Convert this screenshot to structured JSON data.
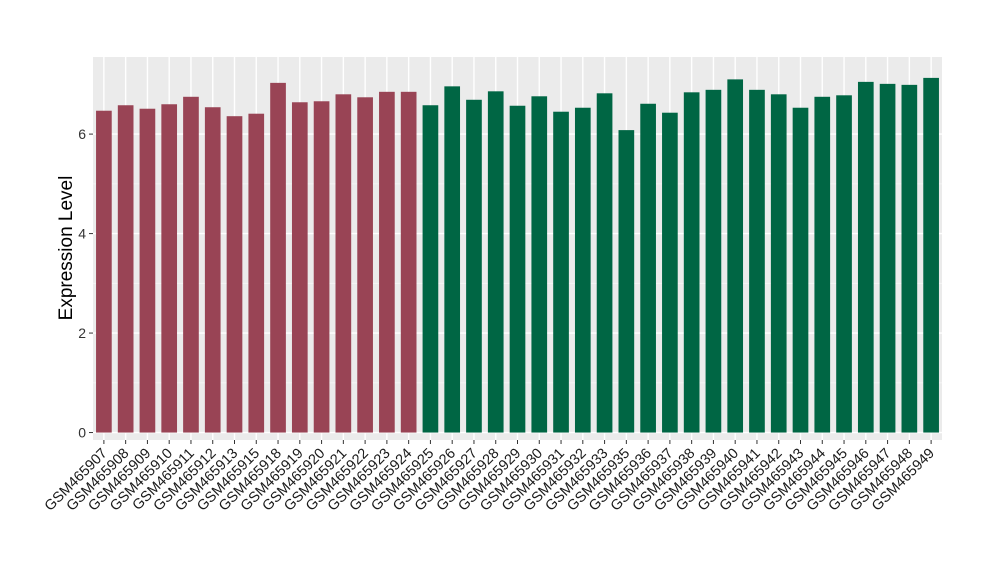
{
  "chart_data": {
    "type": "bar",
    "title": "",
    "xlabel": "",
    "ylabel": "Expression Level",
    "ylim": [
      -0.15,
      7.55
    ],
    "yticks": [
      0,
      2,
      4,
      6
    ],
    "grid": true,
    "background": "#ebebeb",
    "categories": [
      "GSM465907",
      "GSM465908",
      "GSM465909",
      "GSM465910",
      "GSM465911",
      "GSM465912",
      "GSM465913",
      "GSM465915",
      "GSM465918",
      "GSM465919",
      "GSM465920",
      "GSM465921",
      "GSM465922",
      "GSM465923",
      "GSM465924",
      "GSM465925",
      "GSM465926",
      "GSM465927",
      "GSM465928",
      "GSM465929",
      "GSM465930",
      "GSM465931",
      "GSM465932",
      "GSM465933",
      "GSM465935",
      "GSM465936",
      "GSM465937",
      "GSM465938",
      "GSM465939",
      "GSM465940",
      "GSM465941",
      "GSM465942",
      "GSM465943",
      "GSM465944",
      "GSM465945",
      "GSM465946",
      "GSM465947",
      "GSM465948",
      "GSM465949"
    ],
    "values": [
      6.47,
      6.58,
      6.51,
      6.6,
      6.75,
      6.54,
      6.36,
      6.41,
      7.03,
      6.64,
      6.66,
      6.8,
      6.74,
      6.85,
      6.85,
      6.58,
      6.96,
      6.69,
      6.86,
      6.57,
      6.76,
      6.45,
      6.53,
      6.82,
      6.08,
      6.61,
      6.43,
      6.84,
      6.89,
      7.1,
      6.89,
      6.8,
      6.53,
      6.75,
      6.78,
      7.05,
      7.01,
      6.99,
      7.13
    ],
    "group_split_index": 15,
    "colors": {
      "group1": "#994455",
      "group2": "#006644"
    }
  }
}
